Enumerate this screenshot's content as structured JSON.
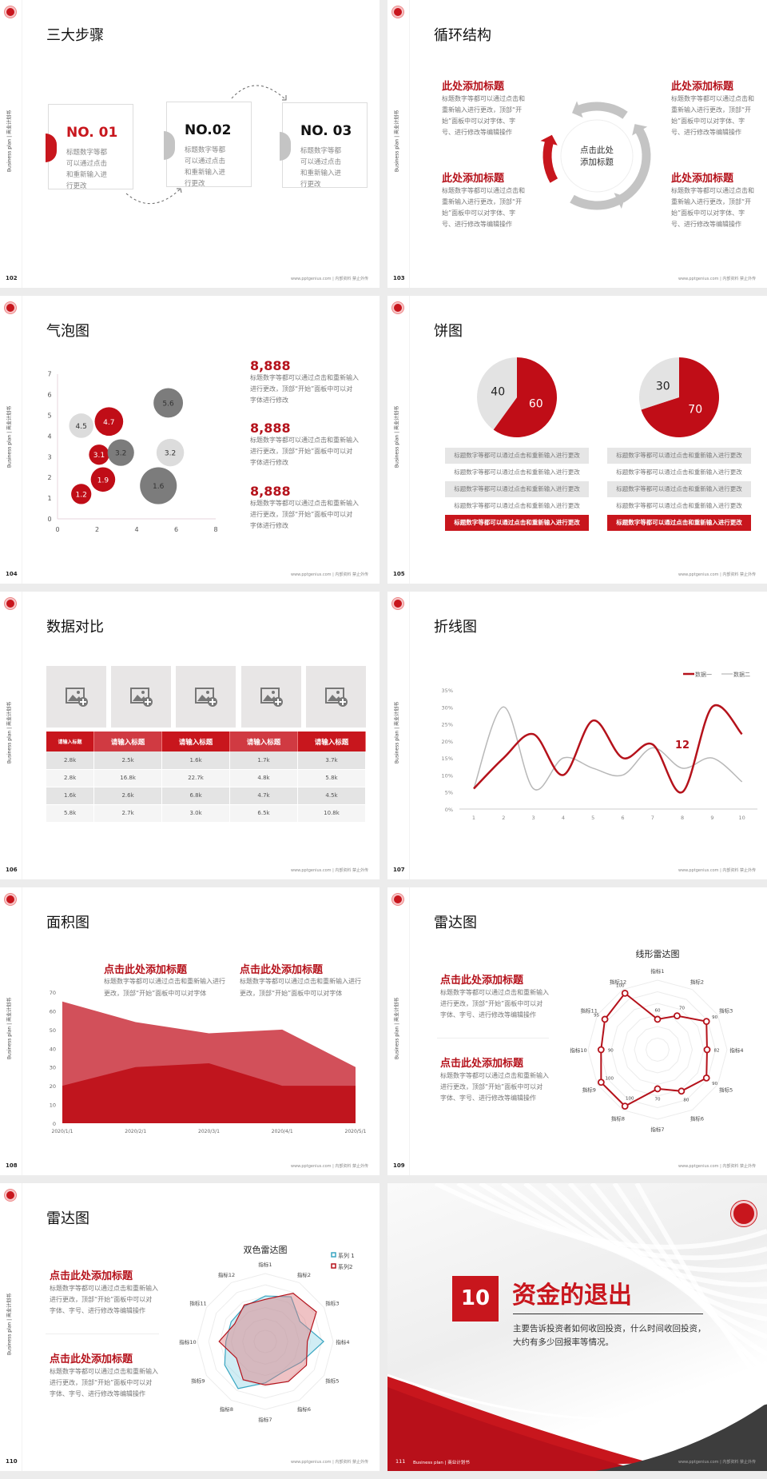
{
  "common": {
    "sidebar_text": "Business plan | 商业计划书",
    "footer": "www.pptgenius.com | 内部资料 禁止外传",
    "accent": "#c8161d",
    "gray_light": "#d9d9d9",
    "gray_dark": "#7f7f7f",
    "logo_icon": "university-seal"
  },
  "s102": {
    "page": "102",
    "title": "三大步骤",
    "steps": [
      {
        "no": "NO. 01",
        "text": "标题数字等都可以通过点击和重新输入进行更改"
      },
      {
        "no": "NO.02",
        "text": "标题数字等都可以通过点击和重新输入进行更改"
      },
      {
        "no": "NO. 03",
        "text": "标题数字等都可以通过点击和重新输入进行更改"
      }
    ]
  },
  "s103": {
    "page": "103",
    "title": "循环结构",
    "center": "点击此处添加标题",
    "items": [
      {
        "heading": "此处添加标题",
        "text": "标题数字等都可以通过点击和重新输入进行更改，顶部“开始”面板中可以对字体、字号、进行修改等编辑操作"
      },
      {
        "heading": "此处添加标题",
        "text": "标题数字等都可以通过点击和重新输入进行更改，顶部“开始”面板中可以对字体、字号、进行修改等编辑操作"
      },
      {
        "heading": "此处添加标题",
        "text": "标题数字等都可以通过点击和重新输入进行更改，顶部“开始”面板中可以对字体、字号、进行修改等编辑操作"
      },
      {
        "heading": "此处添加标题",
        "text": "标题数字等都可以通过点击和重新输入进行更改，顶部“开始”面板中可以对字体、字号、进行修改等编辑操作"
      }
    ]
  },
  "s104": {
    "page": "104",
    "title": "气泡图",
    "stats": [
      {
        "value": "8,888",
        "text": "标题数字等都可以通过点击和重新输入进行更改，顶部“开始”面板中可以对字体进行修改"
      },
      {
        "value": "8,888",
        "text": "标题数字等都可以通过点击和重新输入进行更改，顶部“开始”面板中可以对字体进行修改"
      },
      {
        "value": "8,888",
        "text": "标题数字等都可以通过点击和重新输入进行更改，顶部“开始”面板中可以对字体进行修改"
      }
    ]
  },
  "s105": {
    "page": "105",
    "title": "饼图",
    "rows_left": [
      "标题数字等都可以通过点击和重新输入进行更改",
      "标题数字等都可以通过点击和重新输入进行更改",
      "标题数字等都可以通过点击和重新输入进行更改",
      "标题数字等都可以通过点击和重新输入进行更改",
      "标题数字等都可以通过点击和重新输入进行更改"
    ],
    "rows_right": [
      "标题数字等都可以通过点击和重新输入进行更改",
      "标题数字等都可以通过点击和重新输入进行更改",
      "标题数字等都可以通过点击和重新输入进行更改",
      "标题数字等都可以通过点击和重新输入进行更改",
      "标题数字等都可以通过点击和重新输入进行更改"
    ]
  },
  "s106": {
    "page": "106",
    "title": "数据对比",
    "image_icon": "add-image-icon",
    "headers": [
      "请输入标题",
      "请输入标题",
      "请输入标题",
      "请输入标题",
      "请输入标题"
    ],
    "rows": [
      [
        "2.8k",
        "2.5k",
        "1.6k",
        "1.7k",
        "3.7k"
      ],
      [
        "2.8k",
        "16.8k",
        "22.7k",
        "4.8k",
        "5.8k"
      ],
      [
        "1.6k",
        "2.6k",
        "6.8k",
        "4.7k",
        "4.5k"
      ],
      [
        "5.8k",
        "2.7k",
        "3.0k",
        "6.5k",
        "10.8k"
      ]
    ]
  },
  "s107": {
    "page": "107",
    "title": "折线图",
    "annotation": "12"
  },
  "s108": {
    "page": "108",
    "title": "面积图",
    "items": [
      {
        "heading": "点击此处添加标题",
        "text": "标题数字等都可以通过点击和重新输入进行更改，顶部“开始”面板中可以对字体"
      },
      {
        "heading": "点击此处添加标题",
        "text": "标题数字等都可以通过点击和重新输入进行更改，顶部“开始”面板中可以对字体"
      }
    ]
  },
  "s109": {
    "page": "109",
    "title": "雷达图",
    "items": [
      {
        "heading": "点击此处添加标题",
        "text": "标题数字等都可以通过点击和重新输入进行更改，顶部“开始”面板中可以对字体、字号、进行修改等编辑操作"
      },
      {
        "heading": "点击此处添加标题",
        "text": "标题数字等都可以通过点击和重新输入进行更改，顶部“开始”面板中可以对字体、字号、进行修改等编辑操作"
      }
    ]
  },
  "s110": {
    "page": "110",
    "title": "雷达图",
    "items": [
      {
        "heading": "点击此处添加标题",
        "text": "标题数字等都可以通过点击和重新输入进行更改，顶部“开始”面板中可以对字体、字号、进行修改等编辑操作"
      },
      {
        "heading": "点击此处添加标题",
        "text": "标题数字等都可以通过点击和重新输入进行更改，顶部“开始”面板中可以对字体、字号、进行修改等编辑操作"
      }
    ]
  },
  "s111": {
    "page": "111",
    "number": "10",
    "title": "资金的退出",
    "text": "主要告诉投资者如何收回投资，什么时间收回投资，大约有多少回报率等情况。",
    "footer_left": "Business plan | 商业计划书"
  },
  "chart_data": [
    {
      "type": "scatter",
      "subtype": "bubble",
      "xlim": [
        0,
        8
      ],
      "ylim": [
        0,
        7
      ],
      "xticks": [
        0,
        2,
        4,
        6,
        8
      ],
      "yticks": [
        0,
        1,
        2,
        3,
        4,
        5,
        6,
        7
      ],
      "points": [
        {
          "x": 1.2,
          "y": 4.5,
          "size": 2.2,
          "label": "4.5",
          "color": "light"
        },
        {
          "x": 2.6,
          "y": 4.7,
          "size": 3.0,
          "label": "4.7",
          "color": "red"
        },
        {
          "x": 2.1,
          "y": 3.1,
          "size": 1.5,
          "label": "3.1",
          "color": "red"
        },
        {
          "x": 3.2,
          "y": 3.2,
          "size": 2.6,
          "label": "3.2",
          "color": "dark"
        },
        {
          "x": 5.6,
          "y": 5.6,
          "size": 3.2,
          "label": "5.6",
          "color": "dark"
        },
        {
          "x": 5.7,
          "y": 3.2,
          "size": 2.8,
          "label": "3.2",
          "color": "light"
        },
        {
          "x": 5.1,
          "y": 1.6,
          "size": 5.0,
          "label": "1.6",
          "color": "dark"
        },
        {
          "x": 2.3,
          "y": 1.9,
          "size": 2.2,
          "label": "1.9",
          "color": "red"
        },
        {
          "x": 1.2,
          "y": 1.2,
          "size": 1.5,
          "label": "1.2",
          "color": "red"
        }
      ]
    },
    {
      "type": "pie",
      "values": [
        60,
        40
      ],
      "labels": [
        "60",
        "40"
      ],
      "colors": [
        "#c00d17",
        "#e3e3e3"
      ]
    },
    {
      "type": "pie",
      "values": [
        70,
        30
      ],
      "labels": [
        "70",
        "30"
      ],
      "colors": [
        "#c00d17",
        "#e3e3e3"
      ]
    },
    {
      "type": "line",
      "smooth": true,
      "x": [
        1,
        2,
        3,
        4,
        5,
        6,
        7,
        8,
        9,
        10
      ],
      "ylim": [
        0,
        35
      ],
      "yticks": [
        "0%",
        "5%",
        "10%",
        "15%",
        "20%",
        "25%",
        "30%",
        "35%"
      ],
      "legend": "top-right",
      "series": [
        {
          "name": "数据一",
          "color": "#b5121b",
          "values": [
            6,
            15,
            22,
            10,
            26,
            15,
            19,
            5,
            30,
            22
          ]
        },
        {
          "name": "数据二",
          "color": "#b8b8b8",
          "values": [
            6,
            30,
            6,
            15,
            12,
            10,
            18,
            12,
            15,
            8
          ]
        }
      ]
    },
    {
      "type": "area",
      "categories": [
        "2020/1/1",
        "2020/2/1",
        "2020/3/1",
        "2020/4/1",
        "2020/5/1"
      ],
      "ylim": [
        0,
        70
      ],
      "yticks": [
        0,
        10,
        20,
        30,
        40,
        50,
        60,
        70
      ],
      "series": [
        {
          "color": "#d2505a",
          "values": [
            65,
            54,
            48,
            50,
            30
          ]
        },
        {
          "color": "#c0151e",
          "values": [
            20,
            30,
            32,
            20,
            20
          ]
        }
      ]
    },
    {
      "type": "radar",
      "title": "线形雷达图",
      "axes": [
        "指标1",
        "指标2",
        "指标3",
        "指标4",
        "指标5",
        "指标6",
        "指标7",
        "指标8",
        "指标9",
        "指标10",
        "指标11",
        "指标12"
      ],
      "rlim": [
        25,
        105
      ],
      "series": [
        {
          "color": "#b5121b",
          "values": [
            60,
            70,
            90,
            82,
            90,
            80,
            70,
            100,
            100,
            90,
            95,
            100
          ]
        }
      ]
    },
    {
      "type": "radar",
      "title": "双色雷达图",
      "legend": "top-right",
      "axes": [
        "指标1",
        "指标2",
        "指标3",
        "指标4",
        "指标5",
        "指标6",
        "指标7",
        "指标8",
        "指标9",
        "指标10",
        "指标11",
        "指标12"
      ],
      "rlim": [
        0,
        100
      ],
      "series": [
        {
          "name": "系列 1",
          "color": "#3aa6c2",
          "fill": "rgba(150,215,230,0.45)",
          "values": [
            67,
            76,
            59,
            86,
            61,
            52,
            61,
            80,
            69,
            58,
            58,
            60
          ]
        },
        {
          "name": "系列2",
          "color": "#b5121b",
          "fill": "rgba(220,120,125,0.45)",
          "values": [
            62,
            82,
            87,
            62,
            70,
            68,
            64,
            65,
            49,
            68,
            52,
            62
          ]
        }
      ]
    }
  ]
}
